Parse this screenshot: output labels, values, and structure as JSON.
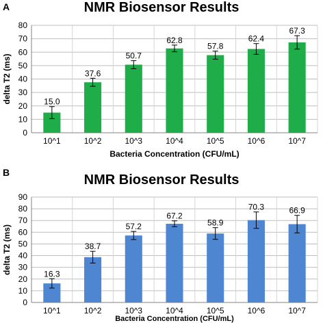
{
  "chart_data": [
    {
      "type": "bar",
      "panel_label": "A",
      "title": "NMR Biosensor Results",
      "xlabel": "Bacteria Concentration (CFU/mL)",
      "ylabel": "delta T2 (ms)",
      "categories": [
        "10^1",
        "10^2",
        "10^3",
        "10^4",
        "10^5",
        "10^6",
        "10^7"
      ],
      "values": [
        15.0,
        37.6,
        50.7,
        62.8,
        57.8,
        62.4,
        67.3
      ],
      "value_labels": [
        "15.0",
        "37.6",
        "50.7",
        "62.8",
        "57.8",
        "62.4",
        "67.3"
      ],
      "error": [
        4.5,
        3.0,
        3.0,
        2.5,
        3.0,
        4.0,
        5.0
      ],
      "ylim": [
        0,
        80
      ],
      "yticks": [
        0,
        10,
        20,
        30,
        40,
        50,
        60,
        70,
        80
      ],
      "ytick_labels": [
        "0",
        "10",
        "20",
        "30",
        "40",
        "50",
        "60",
        "70",
        "80"
      ],
      "grid": true,
      "legend": "none",
      "bar_color": "#1fad4a"
    },
    {
      "type": "bar",
      "panel_label": "B",
      "title": "NMR Biosensor Results",
      "xlabel": "Bacteria Concentration (CFU/mL)",
      "ylabel": "delta T2 (ms)",
      "categories": [
        "10^1",
        "10^2",
        "10^3",
        "10^4",
        "10^5",
        "10^6",
        "10^7"
      ],
      "values": [
        16.3,
        38.7,
        57.2,
        67.2,
        58.9,
        70.3,
        66.9
      ],
      "value_labels": [
        "16.3",
        "38.7",
        "57.2",
        "67.2",
        "58.9",
        "70.3",
        "66.9"
      ],
      "error": [
        4.0,
        5.0,
        3.5,
        2.5,
        5.0,
        7.0,
        7.5
      ],
      "ylim": [
        0,
        90
      ],
      "yticks": [
        0,
        10,
        20,
        30,
        40,
        50,
        60,
        70,
        80,
        90
      ],
      "ytick_labels": [
        "0",
        "10",
        "20",
        "30",
        "40",
        "50",
        "60",
        "70",
        "80",
        "90"
      ],
      "grid": true,
      "legend": "none",
      "bar_color": "#4f86d2"
    }
  ]
}
